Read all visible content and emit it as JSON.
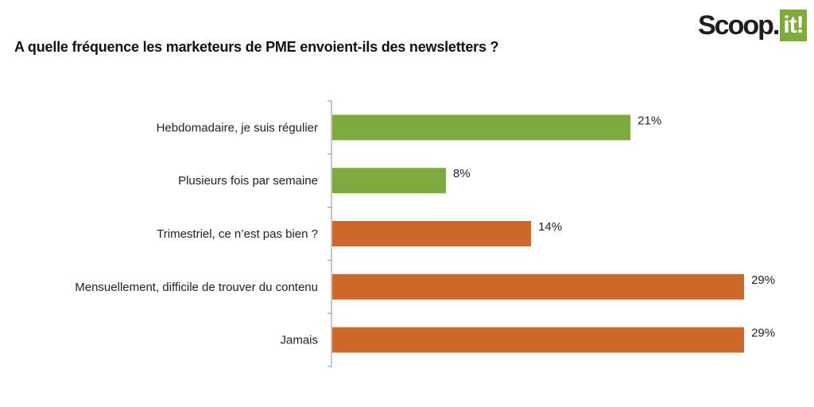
{
  "header": {
    "title": "A quelle fréquence les marketeurs de PME envoient-ils des newsletters ?"
  },
  "logo": {
    "text": "Scoop.",
    "accent_text": "it!",
    "accent_color": "#7eaa3e"
  },
  "chart_data": {
    "type": "bar",
    "orientation": "horizontal",
    "title": "A quelle fréquence les marketeurs de PME envoient-ils des newsletters ?",
    "categories": [
      "Hebdomadaire, je suis régulier",
      "Plusieurs fois par semaine",
      "Trimestriel, ce n’est pas bien ?",
      "Mensuellement, difficile de trouver du contenu",
      "Jamais"
    ],
    "values": [
      21,
      8,
      14,
      29,
      29
    ],
    "value_labels": [
      "21%",
      "8%",
      "14%",
      "29%",
      "29%"
    ],
    "colors": [
      "#7eaa3e",
      "#7eaa3e",
      "#cd672a",
      "#cd672a",
      "#cd672a"
    ],
    "xlim": [
      0,
      29.5
    ],
    "grid": false,
    "legend": "none"
  }
}
